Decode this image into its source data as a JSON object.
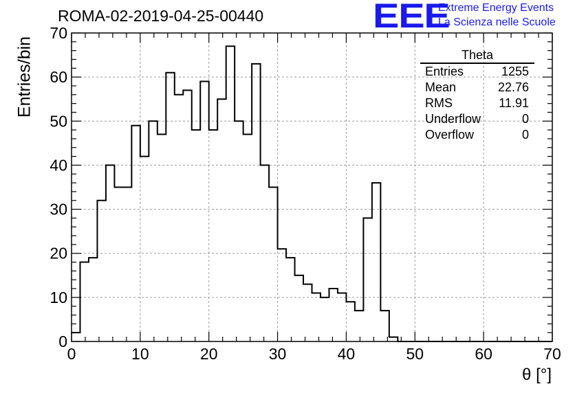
{
  "chart_data": {
    "type": "bar",
    "title": "ROMA-02-2019-04-25-00440",
    "xlabel": "θ [°]",
    "ylabel": "Entries/bin",
    "xlim": [
      0,
      70
    ],
    "ylim": [
      0,
      70
    ],
    "xticks": [
      0,
      10,
      20,
      30,
      40,
      50,
      60,
      70
    ],
    "yticks": [
      0,
      10,
      20,
      30,
      40,
      50,
      60,
      70
    ],
    "grid": true,
    "bin_width": 1.25,
    "bin_edges_start": 0,
    "values": [
      2,
      18,
      19,
      32,
      40,
      35,
      35,
      49,
      42,
      50,
      47,
      61,
      56,
      57,
      48,
      59,
      48,
      55,
      67,
      50,
      47,
      63,
      40,
      35,
      21,
      19,
      15,
      13,
      11,
      10,
      12,
      11,
      9,
      7,
      28,
      36,
      7,
      1,
      0,
      0,
      0,
      0,
      0,
      0,
      0,
      0,
      0,
      0,
      0,
      0,
      0,
      0,
      0,
      0,
      0,
      0
    ],
    "line_color": "#000000",
    "grid_color": "#9a9a9a"
  },
  "stats_box": {
    "title": "Theta",
    "rows": [
      {
        "label": "Entries",
        "value": "1255"
      },
      {
        "label": "Mean",
        "value": "22.76"
      },
      {
        "label": "RMS",
        "value": "11.91"
      },
      {
        "label": "Underflow",
        "value": "0"
      },
      {
        "label": "Overflow",
        "value": "0"
      }
    ]
  },
  "logo": {
    "mark": "EEE",
    "line1": "Extreme Energy Events",
    "line2": "La Scienza nelle Scuole",
    "color": "#1a1aee"
  }
}
